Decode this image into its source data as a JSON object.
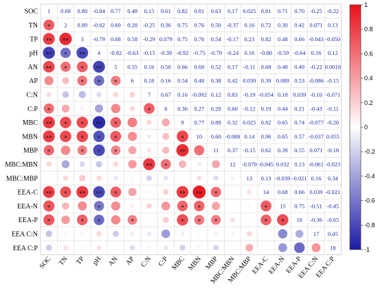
{
  "chart_data": {
    "type": "heatmap",
    "subtype": "correlation-matrix",
    "variables": [
      "SOC",
      "TN",
      "TP",
      "pH",
      "AN",
      "AP",
      "C:N",
      "C:P",
      "MBC",
      "MBN",
      "MBP",
      "MBC:MBN",
      "MBC:MBP",
      "EEA-C",
      "EEA-N",
      "EEA-P",
      "EEA C:N",
      "EEA C:P"
    ],
    "labels": [
      [
        "1",
        "0.68",
        "0.80",
        "-0.84",
        "0.77",
        "0.48",
        "0.15",
        "0.61",
        "0.82",
        "0.81",
        "0.63",
        "0.17",
        "0.025",
        "0.81",
        "0.71",
        "0.70",
        "-0.25",
        "-0.22"
      ],
      [
        "",
        "2",
        "0.89",
        "-0.62",
        "0.60",
        "0.28",
        "-0.25",
        "0.36",
        "0.75",
        "0.76",
        "0.50",
        "-0.37",
        "0.16",
        "0.72",
        "0.30",
        "0.42",
        "0.071",
        "0.13"
      ],
      [
        "",
        "",
        "3",
        "-0.79",
        "0.68",
        "0.58",
        "-0.29",
        "0.079",
        "0.75",
        "0.76",
        "0.54",
        "-0.17",
        "0.23",
        "0.82",
        "0.48",
        "0.66",
        "-0.043",
        "-0.050"
      ],
      [
        "",
        "",
        "",
        "4",
        "-0.82",
        "-0.63",
        "-0.15",
        "-0.39",
        "-0.92",
        "-0.75",
        "-0.79",
        "-0.24",
        "0.16",
        "-0.80",
        "-0.59",
        "-0.64",
        "0.16",
        "0.12"
      ],
      [
        "",
        "",
        "",
        "",
        "5",
        "0.55",
        "0.16",
        "0.50",
        "0.66",
        "0.69",
        "0.52",
        "0.17",
        "-0.11",
        "0.68",
        "0.48",
        "0.49",
        "-0.22",
        "0.0018"
      ],
      [
        "",
        "",
        "",
        "",
        "",
        "6",
        "0.18",
        "0.16",
        "0.54",
        "0.48",
        "0.38",
        "0.42",
        "0.039",
        "0.39",
        "0.089",
        "0.53",
        "-0.086",
        "-0.15"
      ],
      [
        "",
        "",
        "",
        "",
        "",
        "",
        "7",
        "0.67",
        "0.16",
        "-0.092",
        "0.12",
        "0.83",
        "-0.19",
        "-0.054",
        "0.18",
        "0.039",
        "-0.10",
        "-0.071"
      ],
      [
        "",
        "",
        "",
        "",
        "",
        "",
        "",
        "8",
        "0.36",
        "0.27",
        "0.29",
        "0.60",
        "-0.12",
        "0.19",
        "0.44",
        "0.21",
        "-0.43",
        "-0.11"
      ],
      [
        "",
        "",
        "",
        "",
        "",
        "",
        "",
        "",
        "9",
        "0.77",
        "0.88",
        "0.32",
        "0.025",
        "0.82",
        "0.65",
        "0.74",
        "-0.077",
        "-0.20"
      ],
      [
        "",
        "",
        "",
        "",
        "",
        "",
        "",
        "",
        "",
        "10",
        "0.60",
        "-0.088",
        "0.14",
        "0.96",
        "0.65",
        "0.57",
        "-0.037",
        "0.055"
      ],
      [
        "",
        "",
        "",
        "",
        "",
        "",
        "",
        "",
        "",
        "",
        "11",
        "0.37",
        "-0.15",
        "0.62",
        "0.39",
        "0.55",
        "0.071",
        "-0.18"
      ],
      [
        "",
        "",
        "",
        "",
        "",
        "",
        "",
        "",
        "",
        "",
        "",
        "12",
        "-0.070",
        "-0.045",
        "0.032",
        "0.13",
        "-0.061",
        "-0.023"
      ],
      [
        "",
        "",
        "",
        "",
        "",
        "",
        "",
        "",
        "",
        "",
        "",
        "",
        "13",
        "0.13",
        "-0.039",
        "-0.021",
        "0.16",
        "0.34"
      ],
      [
        "",
        "",
        "",
        "",
        "",
        "",
        "",
        "",
        "",
        "",
        "",
        "",
        "",
        "14",
        "0.68",
        "0.66",
        "0.039",
        "-0.021"
      ],
      [
        "",
        "",
        "",
        "",
        "",
        "",
        "",
        "",
        "",
        "",
        "",
        "",
        "",
        "",
        "15",
        "0.75",
        "-0.51",
        "-0.45"
      ],
      [
        "",
        "",
        "",
        "",
        "",
        "",
        "",
        "",
        "",
        "",
        "",
        "",
        "",
        "",
        "",
        "16",
        "-0.36",
        "-0.65"
      ],
      [
        "",
        "",
        "",
        "",
        "",
        "",
        "",
        "",
        "",
        "",
        "",
        "",
        "",
        "",
        "",
        "",
        "17",
        "0.45"
      ],
      [
        "",
        "",
        "",
        "",
        "",
        "",
        "",
        "",
        "",
        "",
        "",
        "",
        "",
        "",
        "",
        "",
        "",
        "18"
      ]
    ],
    "lower_triangle": [
      [],
      [
        0.68
      ],
      [
        0.8,
        0.89
      ],
      [
        -0.84,
        -0.62,
        -0.79
      ],
      [
        0.77,
        0.6,
        0.68,
        -0.82
      ],
      [
        0.48,
        0.28,
        0.58,
        -0.63,
        0.55
      ],
      [
        0.15,
        -0.25,
        -0.29,
        -0.15,
        0.16,
        0.18
      ],
      [
        0.61,
        0.36,
        0.079,
        -0.39,
        0.5,
        0.16,
        0.67
      ],
      [
        0.82,
        0.75,
        0.75,
        -0.92,
        0.66,
        0.54,
        0.16,
        0.36
      ],
      [
        0.81,
        0.76,
        0.76,
        -0.75,
        0.69,
        0.48,
        -0.092,
        0.27,
        0.77
      ],
      [
        0.63,
        0.5,
        0.54,
        -0.79,
        0.52,
        0.38,
        0.12,
        0.29,
        0.88,
        0.6
      ],
      [
        0.17,
        -0.37,
        -0.17,
        -0.24,
        0.17,
        0.42,
        0.83,
        0.6,
        0.32,
        -0.088,
        0.37
      ],
      [
        0.025,
        0.16,
        0.23,
        0.16,
        -0.11,
        0.039,
        -0.19,
        -0.12,
        0.025,
        0.14,
        -0.15,
        -0.07
      ],
      [
        0.81,
        0.72,
        0.82,
        -0.8,
        0.68,
        0.39,
        -0.054,
        0.19,
        0.82,
        0.96,
        0.62,
        -0.045,
        0.13
      ],
      [
        0.71,
        0.3,
        0.48,
        -0.59,
        0.48,
        0.089,
        0.18,
        0.44,
        0.65,
        0.65,
        0.39,
        0.032,
        -0.039,
        0.68
      ],
      [
        0.7,
        0.42,
        0.66,
        -0.64,
        0.49,
        0.53,
        0.039,
        0.21,
        0.74,
        0.57,
        0.55,
        0.13,
        -0.021,
        0.66,
        0.75
      ],
      [
        -0.25,
        0.071,
        -0.043,
        0.16,
        -0.22,
        -0.086,
        -0.1,
        -0.43,
        -0.077,
        -0.037,
        0.071,
        -0.061,
        0.16,
        0.039,
        -0.51,
        -0.36
      ],
      [
        -0.22,
        0.13,
        -0.05,
        0.12,
        0.0018,
        -0.15,
        -0.071,
        -0.11,
        -0.2,
        0.055,
        -0.18,
        -0.023,
        0.34,
        -0.021,
        -0.45,
        -0.65,
        0.45
      ]
    ],
    "significance_stars": {
      "1,0": "*",
      "2,0": "**",
      "2,1": "**",
      "3,0": "**",
      "3,1": "*",
      "3,2": "**",
      "4,0": "**",
      "4,1": "*",
      "4,2": "*",
      "4,3": "**",
      "5,2": "*",
      "5,3": "*",
      "5,4": "*",
      "7,0": "*",
      "7,6": "*",
      "8,0": "**",
      "8,1": "*",
      "8,2": "*",
      "8,3": "**",
      "8,4": "*",
      "9,0": "**",
      "9,1": "*",
      "9,2": "*",
      "9,3": "*",
      "9,4": "*",
      "9,8": "*",
      "10,0": "*",
      "10,2": "*",
      "10,3": "*",
      "10,4": "*",
      "10,8": "**",
      "11,6": "**",
      "11,7": "*",
      "13,0": "**",
      "13,1": "*",
      "13,2": "**",
      "13,3": "**",
      "13,4": "*",
      "13,8": "**",
      "13,9": "**",
      "13,10": "*",
      "14,0": "*",
      "14,3": "*",
      "14,8": "*",
      "14,9": "*",
      "14,13": "*",
      "15,0": "*",
      "15,2": "*",
      "15,3": "*",
      "15,5": "*",
      "15,8": "*",
      "15,9": "*",
      "15,10": "*",
      "15,13": "*",
      "15,14": "*"
    },
    "colorbar": {
      "min": -1,
      "max": 1,
      "ticks": [
        "1",
        "0.8",
        "0.6",
        "0.4",
        "0.2",
        "0",
        "-0.2",
        "-0.4",
        "-0.6",
        "-0.8",
        "-1"
      ],
      "colors": {
        "negative": "#1a1aa6",
        "zero": "#ffffff",
        "positive": "#e8101a"
      }
    },
    "grid": true,
    "legend_position": "right"
  }
}
